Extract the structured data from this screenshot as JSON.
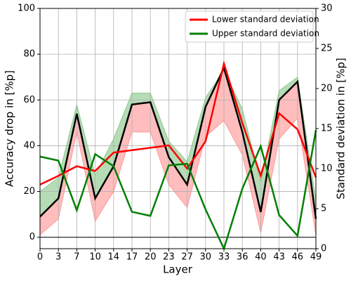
{
  "chart_data": {
    "type": "line",
    "x_label": "Layer",
    "y_label": "Accuracy drop in [%p]",
    "y2_label": "Standard deviation in [%p]",
    "categories": [
      0,
      3,
      7,
      10,
      14,
      17,
      20,
      23,
      27,
      30,
      33,
      36,
      40,
      43,
      46,
      49
    ],
    "mean": {
      "color": "#000000",
      "values": [
        9,
        17,
        54,
        17,
        31,
        58,
        59,
        35,
        23,
        57,
        74,
        46,
        11,
        60,
        68,
        8
      ]
    },
    "lower_band": {
      "color": "#ff9999",
      "values": [
        1,
        8,
        46,
        7,
        20,
        46,
        46,
        23,
        13,
        44,
        51,
        36,
        2,
        43,
        52,
        1
      ]
    },
    "upper_band": {
      "color": "#8fc98f",
      "values": [
        20,
        26,
        58,
        27,
        43,
        63,
        63,
        42,
        33,
        61,
        73,
        56,
        24,
        64,
        70,
        16
      ]
    },
    "series": [
      {
        "name": "Lower standard deviation",
        "color": "#ff0000",
        "axis": "y2",
        "values": [
          8.0,
          9.1,
          10.3,
          9.7,
          12.0,
          12.3,
          12.6,
          12.9,
          10.0,
          13.4,
          23.1,
          15.7,
          9.1,
          16.9,
          14.9,
          8.9
        ]
      },
      {
        "name": "Upper standard deviation",
        "color": "#008000",
        "axis": "y2",
        "values": [
          11.5,
          11.0,
          4.8,
          11.8,
          10.3,
          4.6,
          4.1,
          10.4,
          10.6,
          4.9,
          0,
          7.5,
          12.8,
          4.2,
          1.6,
          14.8
        ]
      }
    ],
    "ylim": [
      -5,
      100
    ],
    "yticks": [
      0,
      20,
      40,
      60,
      80,
      100
    ],
    "y2lim": [
      0,
      30
    ],
    "y2ticks": [
      0,
      5,
      10,
      15,
      20,
      25,
      30
    ],
    "grid": true,
    "legend": "upper right"
  }
}
